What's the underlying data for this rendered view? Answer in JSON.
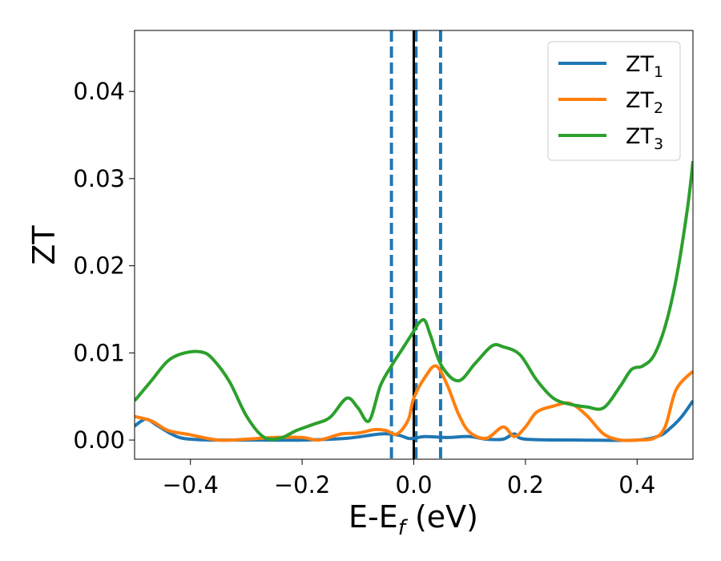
{
  "chart_data": {
    "type": "line",
    "title": "",
    "xlabel_main": "E-E",
    "xlabel_sub": "f",
    "xlabel_unit": " (eV)",
    "ylabel": "ZT",
    "xlim": [
      -0.5,
      0.5
    ],
    "ylim": [
      -0.0022,
      0.047
    ],
    "x_ticks": [
      -0.4,
      -0.2,
      0.0,
      0.2,
      0.4
    ],
    "x_tick_labels": [
      "−0.4",
      "−0.2",
      "0.0",
      "0.2",
      "0.4"
    ],
    "y_ticks": [
      0.0,
      0.01,
      0.02,
      0.03,
      0.04
    ],
    "y_tick_labels": [
      "0.00",
      "0.01",
      "0.02",
      "0.03",
      "0.04"
    ],
    "grid": false,
    "legend_position": "top-right",
    "vertical_lines": [
      {
        "x": -0.04,
        "style": "dashed",
        "color": "#1f77b4"
      },
      {
        "x": 0.004,
        "style": "dashed",
        "color": "#1f77b4"
      },
      {
        "x": 0.048,
        "style": "dashed",
        "color": "#1f77b4"
      },
      {
        "x": 0.0,
        "style": "solid",
        "color": "#000000"
      }
    ],
    "series": [
      {
        "name_main": "ZT",
        "name_sub": "1",
        "color": "#1f77b4",
        "x": [
          -0.5,
          -0.48,
          -0.46,
          -0.44,
          -0.42,
          -0.4,
          -0.36,
          -0.3,
          -0.2,
          -0.12,
          -0.06,
          -0.03,
          -0.01,
          0.0,
          0.02,
          0.06,
          0.1,
          0.13,
          0.16,
          0.18,
          0.2,
          0.3,
          0.4,
          0.44,
          0.46,
          0.48,
          0.5
        ],
        "values": [
          0.0016,
          0.0024,
          0.0017,
          0.0009,
          0.0003,
          0.0001,
          0.0,
          0.0,
          0.0,
          0.0002,
          0.0007,
          0.0006,
          0.0002,
          0.0002,
          0.0004,
          0.0003,
          0.0004,
          0.0001,
          0.0001,
          0.0007,
          0.0001,
          0.0,
          0.0,
          0.0005,
          0.0014,
          0.0027,
          0.0045
        ]
      },
      {
        "name_main": "ZT",
        "name_sub": "2",
        "color": "#ff7f0e",
        "x": [
          -0.5,
          -0.47,
          -0.44,
          -0.4,
          -0.35,
          -0.3,
          -0.25,
          -0.2,
          -0.17,
          -0.13,
          -0.1,
          -0.07,
          -0.05,
          -0.03,
          -0.01,
          0.0,
          0.02,
          0.04,
          0.06,
          0.08,
          0.1,
          0.13,
          0.16,
          0.18,
          0.2,
          0.22,
          0.25,
          0.28,
          0.31,
          0.34,
          0.37,
          0.4,
          0.43,
          0.45,
          0.47,
          0.5
        ],
        "values": [
          0.0027,
          0.0022,
          0.0011,
          0.0006,
          0.0,
          0.0001,
          0.0003,
          0.0003,
          0.0,
          0.0007,
          0.0008,
          0.0012,
          0.0011,
          0.0007,
          0.0023,
          0.0048,
          0.0072,
          0.0085,
          0.0063,
          0.003,
          0.0009,
          0.0002,
          0.0015,
          0.0004,
          0.0015,
          0.0032,
          0.0039,
          0.0042,
          0.0028,
          0.0007,
          0.0,
          0.0,
          0.0002,
          0.0015,
          0.0058,
          0.0079
        ]
      },
      {
        "name_main": "ZT",
        "name_sub": "3",
        "color": "#2ca02c",
        "x": [
          -0.5,
          -0.47,
          -0.44,
          -0.41,
          -0.38,
          -0.36,
          -0.33,
          -0.3,
          -0.27,
          -0.24,
          -0.21,
          -0.18,
          -0.15,
          -0.12,
          -0.1,
          -0.08,
          -0.06,
          -0.04,
          -0.02,
          0.0,
          0.01,
          0.02,
          0.03,
          0.05,
          0.08,
          0.11,
          0.14,
          0.16,
          0.19,
          0.22,
          0.25,
          0.28,
          0.31,
          0.34,
          0.37,
          0.39,
          0.41,
          0.43,
          0.45,
          0.47,
          0.49,
          0.5
        ],
        "values": [
          0.0045,
          0.0068,
          0.0091,
          0.01,
          0.0101,
          0.0093,
          0.0067,
          0.0028,
          0.0004,
          0.0002,
          0.0011,
          0.0018,
          0.0026,
          0.0048,
          0.0037,
          0.0022,
          0.0062,
          0.0085,
          0.0105,
          0.0125,
          0.0135,
          0.0137,
          0.012,
          0.0085,
          0.0068,
          0.0088,
          0.0108,
          0.0107,
          0.0098,
          0.0069,
          0.0048,
          0.0041,
          0.0038,
          0.0037,
          0.0062,
          0.0081,
          0.0085,
          0.0097,
          0.013,
          0.0185,
          0.0265,
          0.032
        ]
      }
    ]
  }
}
